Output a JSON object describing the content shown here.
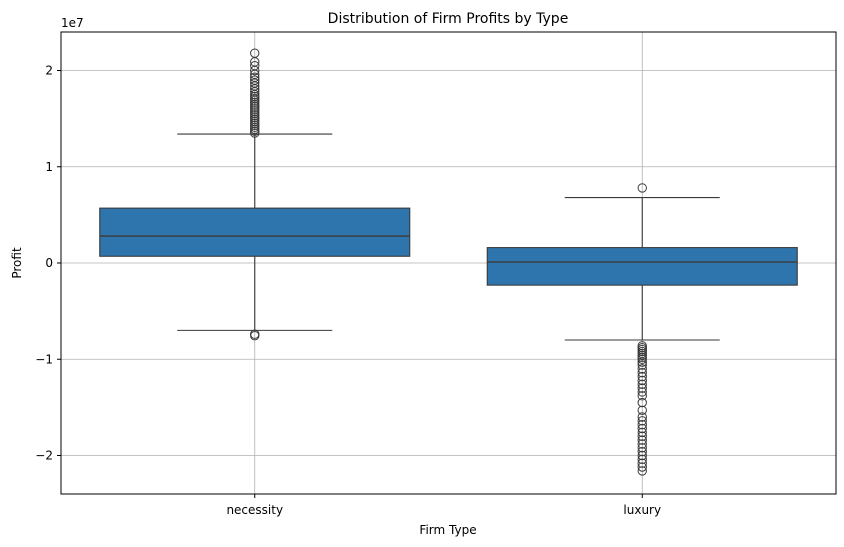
{
  "chart_data": {
    "type": "box",
    "title": "Distribution of Firm Profits by Type",
    "xlabel": "Firm Type",
    "ylabel": "Profit",
    "offset_label": "1e7",
    "ylim": [
      -2.4,
      2.4
    ],
    "yticks": [
      -2,
      -1,
      0,
      1,
      2
    ],
    "ytick_labels": [
      "−2",
      "−1",
      "0",
      "1",
      "2"
    ],
    "grid": true,
    "box_color": "#2e75ad",
    "categories": [
      "necessity",
      "luxury"
    ],
    "boxes": [
      {
        "category": "necessity",
        "whislo": -0.7,
        "q1": 0.07,
        "med": 0.28,
        "q3": 0.57,
        "whishi": 1.34,
        "fliers": [
          -0.755,
          -0.74,
          1.35,
          1.37,
          1.39,
          1.41,
          1.43,
          1.45,
          1.47,
          1.49,
          1.51,
          1.53,
          1.55,
          1.57,
          1.59,
          1.61,
          1.63,
          1.65,
          1.67,
          1.69,
          1.71,
          1.73,
          1.75,
          1.78,
          1.81,
          1.84,
          1.87,
          1.9,
          1.93,
          1.96,
          2.0,
          2.05,
          2.09,
          2.18
        ]
      },
      {
        "category": "luxury",
        "whislo": -0.8,
        "q1": -0.23,
        "med": 0.01,
        "q3": 0.16,
        "whishi": 0.68,
        "fliers": [
          0.78,
          -0.86,
          -0.88,
          -0.9,
          -0.92,
          -0.94,
          -0.96,
          -0.98,
          -1.0,
          -1.03,
          -1.06,
          -1.1,
          -1.14,
          -1.18,
          -1.22,
          -1.26,
          -1.3,
          -1.34,
          -1.38,
          -1.45,
          -1.53,
          -1.6,
          -1.64,
          -1.68,
          -1.72,
          -1.76,
          -1.8,
          -1.84,
          -1.88,
          -1.92,
          -1.96,
          -2.0,
          -2.04,
          -2.08,
          -2.12,
          -2.16
        ]
      }
    ]
  }
}
